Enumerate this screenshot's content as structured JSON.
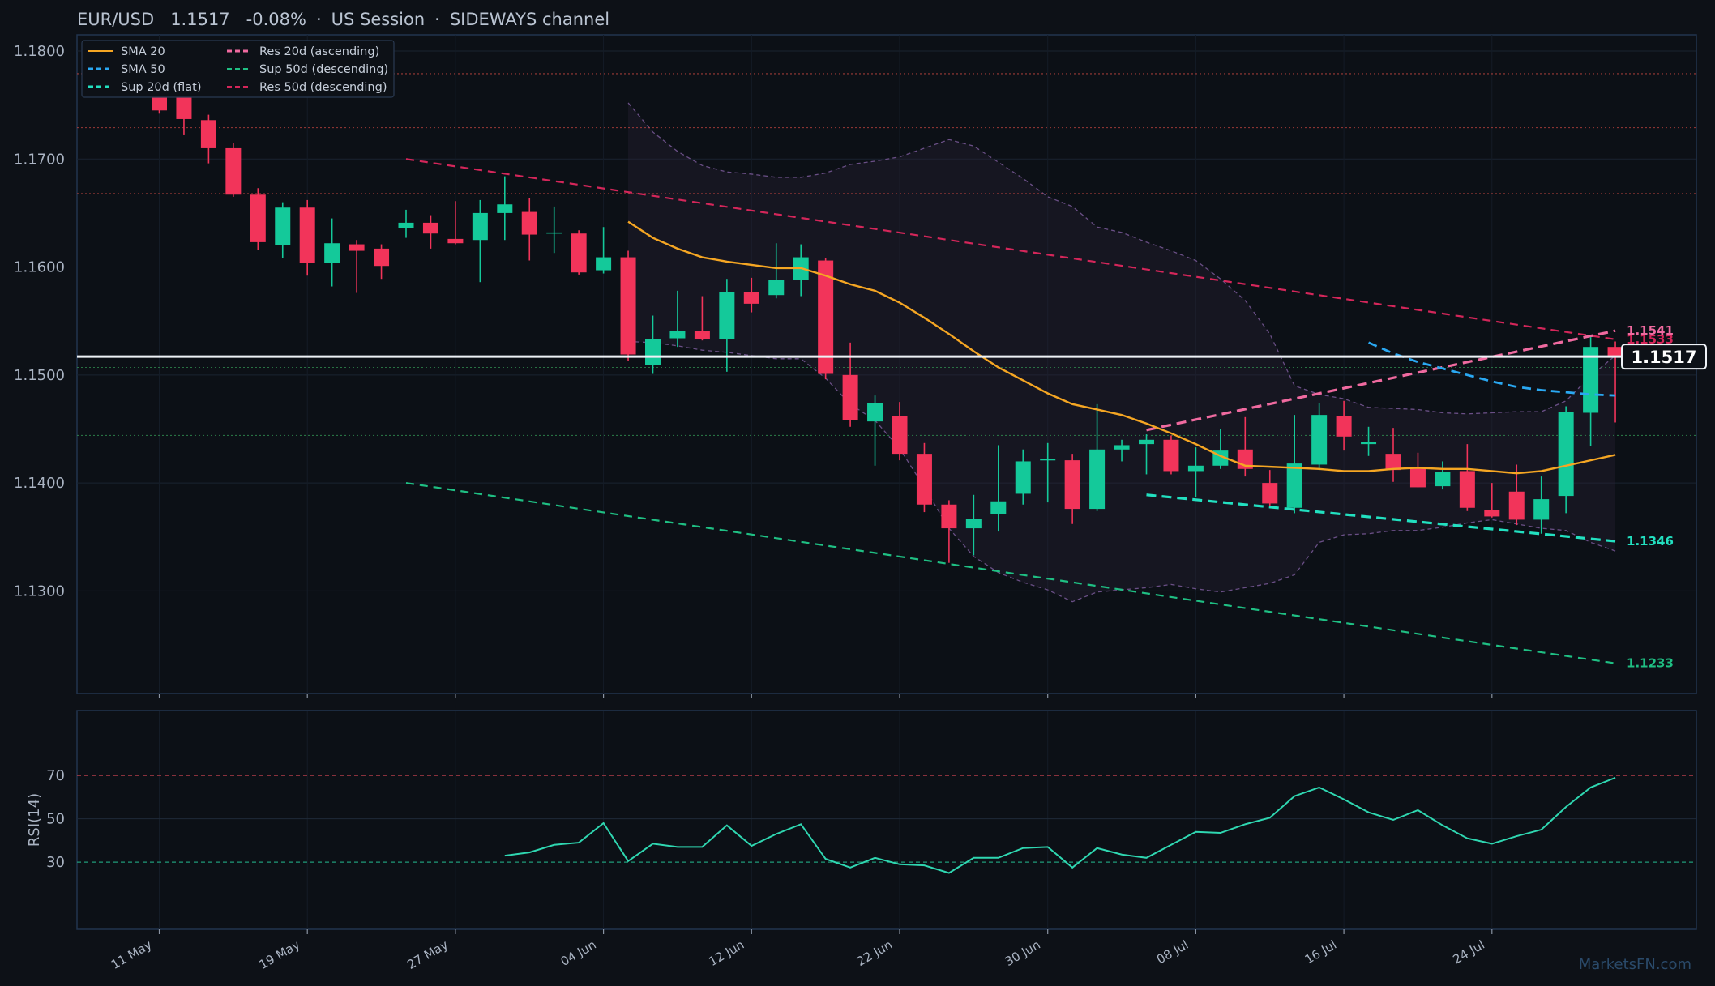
{
  "header": {
    "symbol": "EUR/USD",
    "price": "1.1517",
    "change": "-0.08%",
    "session": "US Session",
    "regime": "SIDEWAYS channel",
    "separator": "·"
  },
  "watermark": "MarketsFN.com",
  "colors": {
    "background": "#0d1117",
    "up": "#14c99a",
    "down": "#f2345a",
    "sma20": "#f5a623",
    "sma50": "#2aa8f2",
    "res20": "#f06aa0",
    "sup20": "#22e0c0",
    "sup50": "#1fbf83",
    "res50": "#d4265a",
    "rsi": "#2fd7b1"
  },
  "chart_data": {
    "type": "candlestick",
    "x_tick_labels": [
      "11 May",
      "19 May",
      "27 May",
      "04 Jun",
      "12 Jun",
      "22 Jun",
      "30 Jun",
      "08 Jul",
      "16 Jul",
      "24 Jul"
    ],
    "x_tick_index": [
      0,
      6,
      12,
      18,
      24,
      30,
      36,
      42,
      48,
      54
    ],
    "price_ticks": [
      "1.1300",
      "1.1400",
      "1.1500",
      "1.1600",
      "1.1700",
      "1.1800"
    ],
    "ylim": [
      1.1205,
      1.1815
    ],
    "current_price": 1.1517,
    "current_price_label": "1.1517",
    "horizontal_levels": [
      {
        "value": 1.1779,
        "color": "#c2453f"
      },
      {
        "value": 1.1729,
        "color": "#c2453f"
      },
      {
        "value": 1.1668,
        "color": "#c2453f"
      },
      {
        "value": 1.1507,
        "color": "#2f8a4f"
      },
      {
        "value": 1.1444,
        "color": "#2f8a4f"
      }
    ],
    "legend": [
      {
        "label": "SMA 20",
        "color": "#f5a623",
        "dash": "solid"
      },
      {
        "label": "SMA 50",
        "color": "#2aa8f2",
        "dash": "dashed"
      },
      {
        "label": "Sup 20d (flat)",
        "color": "#22e0c0",
        "dash": "dashed"
      },
      {
        "label": "Res 20d (ascending)",
        "color": "#f06aa0",
        "dash": "dashed"
      },
      {
        "label": "Sup 50d (descending)",
        "color": "#1fbf83",
        "dash": "dashed"
      },
      {
        "label": "Res 50d (descending)",
        "color": "#d4265a",
        "dash": "dashed"
      }
    ],
    "ohlc": [
      [
        1.1762,
        1.1772,
        1.1742,
        1.1745
      ],
      [
        1.1758,
        1.1785,
        1.1722,
        1.1737
      ],
      [
        1.1736,
        1.1741,
        1.1696,
        1.171
      ],
      [
        1.171,
        1.1715,
        1.1665,
        1.1667
      ],
      [
        1.1667,
        1.1673,
        1.1616,
        1.1623
      ],
      [
        1.162,
        1.166,
        1.1608,
        1.1655
      ],
      [
        1.1655,
        1.1662,
        1.1592,
        1.1604
      ],
      [
        1.1604,
        1.1645,
        1.1582,
        1.1622
      ],
      [
        1.1621,
        1.1625,
        1.1576,
        1.1615
      ],
      [
        1.1617,
        1.1621,
        1.1589,
        1.1601
      ],
      [
        1.1636,
        1.1653,
        1.1627,
        1.1641
      ],
      [
        1.1641,
        1.1648,
        1.1617,
        1.1631
      ],
      [
        1.1626,
        1.1661,
        1.1621,
        1.1622
      ],
      [
        1.1625,
        1.1662,
        1.1586,
        1.165
      ],
      [
        1.165,
        1.1684,
        1.1625,
        1.1658
      ],
      [
        1.1651,
        1.1664,
        1.1606,
        1.163
      ],
      [
        1.1631,
        1.1656,
        1.1613,
        1.1632
      ],
      [
        1.1631,
        1.1634,
        1.1593,
        1.1595
      ],
      [
        1.1597,
        1.1637,
        1.1594,
        1.1609
      ],
      [
        1.1609,
        1.1615,
        1.1513,
        1.1519
      ],
      [
        1.1509,
        1.1555,
        1.1501,
        1.1533
      ],
      [
        1.1534,
        1.1578,
        1.1526,
        1.1541
      ],
      [
        1.1541,
        1.1573,
        1.1532,
        1.1533
      ],
      [
        1.1533,
        1.1589,
        1.1503,
        1.1577
      ],
      [
        1.1577,
        1.159,
        1.1558,
        1.1566
      ],
      [
        1.1574,
        1.1622,
        1.1571,
        1.1588
      ],
      [
        1.1588,
        1.1621,
        1.1573,
        1.1609
      ],
      [
        1.1606,
        1.1608,
        1.1496,
        1.1501
      ],
      [
        1.15,
        1.153,
        1.1452,
        1.1458
      ],
      [
        1.1457,
        1.1481,
        1.1416,
        1.1474
      ],
      [
        1.1462,
        1.1475,
        1.1421,
        1.1427
      ],
      [
        1.1427,
        1.1437,
        1.1373,
        1.138
      ],
      [
        1.138,
        1.1384,
        1.1326,
        1.1358
      ],
      [
        1.1358,
        1.1389,
        1.1333,
        1.1367
      ],
      [
        1.1371,
        1.1435,
        1.1355,
        1.1383
      ],
      [
        1.139,
        1.1431,
        1.138,
        1.142
      ],
      [
        1.1421,
        1.1437,
        1.1382,
        1.1422
      ],
      [
        1.1421,
        1.1427,
        1.1362,
        1.1376
      ],
      [
        1.1376,
        1.1473,
        1.1374,
        1.1431
      ],
      [
        1.1431,
        1.144,
        1.142,
        1.1435
      ],
      [
        1.1436,
        1.1445,
        1.1408,
        1.144
      ],
      [
        1.144,
        1.1444,
        1.1408,
        1.1411
      ],
      [
        1.1411,
        1.1433,
        1.1387,
        1.1416
      ],
      [
        1.1416,
        1.145,
        1.1413,
        1.143
      ],
      [
        1.1431,
        1.1461,
        1.1406,
        1.1413
      ],
      [
        1.14,
        1.1412,
        1.1379,
        1.1381
      ],
      [
        1.1377,
        1.1463,
        1.1372,
        1.1418
      ],
      [
        1.1417,
        1.1474,
        1.1412,
        1.1463
      ],
      [
        1.1462,
        1.1476,
        1.143,
        1.1443
      ],
      [
        1.1436,
        1.1452,
        1.1425,
        1.1438
      ],
      [
        1.1427,
        1.1451,
        1.1401,
        1.1412
      ],
      [
        1.1414,
        1.1428,
        1.1396,
        1.1396
      ],
      [
        1.1397,
        1.142,
        1.1394,
        1.141
      ],
      [
        1.1411,
        1.1436,
        1.1374,
        1.1377
      ],
      [
        1.1375,
        1.14,
        1.1368,
        1.1369
      ],
      [
        1.1392,
        1.1417,
        1.1361,
        1.1366
      ],
      [
        1.1366,
        1.1406,
        1.1353,
        1.1385
      ],
      [
        1.1388,
        1.1471,
        1.1372,
        1.1466
      ],
      [
        1.1465,
        1.1535,
        1.1434,
        1.1526
      ],
      [
        1.1526,
        1.1531,
        1.1456,
        1.1517
      ]
    ],
    "sma20": [
      [
        19,
        1.1642
      ],
      [
        20,
        1.1627
      ],
      [
        21,
        1.1617
      ],
      [
        22,
        1.1609
      ],
      [
        23,
        1.1605
      ],
      [
        24,
        1.1602
      ],
      [
        25,
        1.1599
      ],
      [
        26,
        1.1599
      ],
      [
        27,
        1.1592
      ],
      [
        28,
        1.1584
      ],
      [
        29,
        1.1578
      ],
      [
        30,
        1.1567
      ],
      [
        31,
        1.1553
      ],
      [
        32,
        1.1538
      ],
      [
        33,
        1.1522
      ],
      [
        34,
        1.1507
      ],
      [
        35,
        1.1495
      ],
      [
        36,
        1.1483
      ],
      [
        37,
        1.1473
      ],
      [
        38,
        1.1468
      ],
      [
        39,
        1.1463
      ],
      [
        40,
        1.1455
      ],
      [
        41,
        1.1446
      ],
      [
        42,
        1.1436
      ],
      [
        43,
        1.1425
      ],
      [
        44,
        1.1416
      ],
      [
        45,
        1.1415
      ],
      [
        46,
        1.1414
      ],
      [
        47,
        1.1413
      ],
      [
        48,
        1.1411
      ],
      [
        49,
        1.1411
      ],
      [
        50,
        1.1413
      ],
      [
        51,
        1.1414
      ],
      [
        52,
        1.1413
      ],
      [
        53,
        1.1413
      ],
      [
        54,
        1.1411
      ],
      [
        55,
        1.1409
      ],
      [
        56,
        1.1411
      ],
      [
        57,
        1.1416
      ],
      [
        58,
        1.1421
      ],
      [
        59,
        1.1426
      ]
    ],
    "sma50": [
      [
        49,
        1.153
      ],
      [
        50,
        1.152
      ],
      [
        51,
        1.1512
      ],
      [
        52,
        1.1506
      ],
      [
        53,
        1.15
      ],
      [
        54,
        1.1494
      ],
      [
        55,
        1.1489
      ],
      [
        56,
        1.1486
      ],
      [
        57,
        1.1484
      ],
      [
        58,
        1.1482
      ],
      [
        59,
        1.1481
      ]
    ],
    "bollinger_upper": [
      [
        19,
        1.1752
      ],
      [
        20,
        1.1725
      ],
      [
        21,
        1.1707
      ],
      [
        22,
        1.1694
      ],
      [
        23,
        1.1688
      ],
      [
        24,
        1.1686
      ],
      [
        25,
        1.1683
      ],
      [
        26,
        1.1683
      ],
      [
        27,
        1.1687
      ],
      [
        28,
        1.1695
      ],
      [
        29,
        1.1698
      ],
      [
        30,
        1.1702
      ],
      [
        31,
        1.171
      ],
      [
        32,
        1.1718
      ],
      [
        33,
        1.1712
      ],
      [
        34,
        1.1697
      ],
      [
        35,
        1.1682
      ],
      [
        36,
        1.1665
      ],
      [
        37,
        1.1656
      ],
      [
        38,
        1.1637
      ],
      [
        39,
        1.1632
      ],
      [
        40,
        1.1623
      ],
      [
        41,
        1.1615
      ],
      [
        42,
        1.1606
      ],
      [
        43,
        1.1589
      ],
      [
        44,
        1.1569
      ],
      [
        45,
        1.1538
      ],
      [
        46,
        1.149
      ],
      [
        47,
        1.1482
      ],
      [
        48,
        1.1478
      ],
      [
        49,
        1.147
      ],
      [
        50,
        1.1469
      ],
      [
        51,
        1.1468
      ],
      [
        52,
        1.1465
      ],
      [
        53,
        1.1464
      ],
      [
        54,
        1.1465
      ],
      [
        55,
        1.1466
      ],
      [
        56,
        1.1466
      ],
      [
        57,
        1.1476
      ],
      [
        58,
        1.1499
      ],
      [
        59,
        1.1518
      ]
    ],
    "bollinger_lower": [
      [
        19,
        1.1531
      ],
      [
        20,
        1.153
      ],
      [
        21,
        1.1527
      ],
      [
        22,
        1.1523
      ],
      [
        23,
        1.1521
      ],
      [
        24,
        1.1518
      ],
      [
        25,
        1.1515
      ],
      [
        26,
        1.1515
      ],
      [
        27,
        1.1497
      ],
      [
        28,
        1.1473
      ],
      [
        29,
        1.1458
      ],
      [
        30,
        1.1432
      ],
      [
        31,
        1.1396
      ],
      [
        32,
        1.1358
      ],
      [
        33,
        1.1332
      ],
      [
        34,
        1.1317
      ],
      [
        35,
        1.1308
      ],
      [
        36,
        1.1301
      ],
      [
        37,
        1.129
      ],
      [
        38,
        1.1299
      ],
      [
        39,
        1.1301
      ],
      [
        40,
        1.1303
      ],
      [
        41,
        1.1306
      ],
      [
        42,
        1.1302
      ],
      [
        43,
        1.1299
      ],
      [
        44,
        1.1303
      ],
      [
        45,
        1.1307
      ],
      [
        46,
        1.1315
      ],
      [
        47,
        1.1345
      ],
      [
        48,
        1.1352
      ],
      [
        49,
        1.1353
      ],
      [
        50,
        1.1356
      ],
      [
        51,
        1.1356
      ],
      [
        52,
        1.1359
      ],
      [
        53,
        1.1363
      ],
      [
        54,
        1.1366
      ],
      [
        55,
        1.1362
      ],
      [
        56,
        1.1358
      ],
      [
        57,
        1.1356
      ],
      [
        58,
        1.1345
      ],
      [
        59,
        1.1337
      ]
    ],
    "trendlines": [
      {
        "name": "Res 50d (descending)",
        "color": "#d4265a",
        "from": [
          10,
          1.17
        ],
        "to": [
          59,
          1.1533
        ],
        "label": "1.1533",
        "width": 2.2,
        "dash": "10,7"
      },
      {
        "name": "Sup 50d (descending)",
        "color": "#1fbf83",
        "from": [
          10,
          1.14
        ],
        "to": [
          59,
          1.1233
        ],
        "label": "1.1233",
        "width": 2.2,
        "dash": "10,7"
      },
      {
        "name": "Res 20d (ascending)",
        "color": "#f06aa0",
        "from": [
          40,
          1.1449
        ],
        "to": [
          59,
          1.1541
        ],
        "label": "1.1541",
        "width": 3.2,
        "dash": "12,7"
      },
      {
        "name": "Sup 20d (flat)",
        "color": "#22e0c0",
        "from": [
          40,
          1.1389
        ],
        "to": [
          59,
          1.1346
        ],
        "label": "1.1346",
        "width": 3.2,
        "dash": "12,7"
      },
      {
        "name": "SMA 50",
        "color": "#2aa8f2",
        "from": null,
        "to": null,
        "label": null
      }
    ],
    "rsi": {
      "label": "RSI(14)",
      "ticks": [
        "30",
        "50",
        "70"
      ],
      "ylim": [
        -1,
        100
      ],
      "overbought": 70,
      "oversold": 30,
      "values": [
        [
          14,
          33
        ],
        [
          15,
          34.5
        ],
        [
          16,
          38
        ],
        [
          17,
          39
        ],
        [
          18,
          48
        ],
        [
          19,
          30.5
        ],
        [
          20,
          38.5
        ],
        [
          21,
          37
        ],
        [
          22,
          37
        ],
        [
          23,
          47
        ],
        [
          24,
          37.5
        ],
        [
          25,
          43
        ],
        [
          26,
          47.5
        ],
        [
          27,
          31.5
        ],
        [
          28,
          27.5
        ],
        [
          29,
          32
        ],
        [
          30,
          29
        ],
        [
          31,
          28.5
        ],
        [
          32,
          25
        ],
        [
          33,
          32
        ],
        [
          34,
          32
        ],
        [
          35,
          36.5
        ],
        [
          36,
          37
        ],
        [
          37,
          27.5
        ],
        [
          38,
          36.5
        ],
        [
          39,
          33.5
        ],
        [
          40,
          32
        ],
        [
          41,
          38
        ],
        [
          42,
          44
        ],
        [
          43,
          43.5
        ],
        [
          44,
          47.5
        ],
        [
          45,
          50.5
        ],
        [
          46,
          60.5
        ],
        [
          47,
          64.5
        ],
        [
          48,
          59
        ],
        [
          49,
          53
        ],
        [
          50,
          49.5
        ],
        [
          51,
          54
        ],
        [
          52,
          47
        ],
        [
          53,
          41
        ],
        [
          54,
          38.5
        ],
        [
          55,
          42
        ],
        [
          56,
          45
        ],
        [
          57,
          55.5
        ],
        [
          58,
          64.5
        ],
        [
          59,
          69
        ]
      ]
    }
  }
}
